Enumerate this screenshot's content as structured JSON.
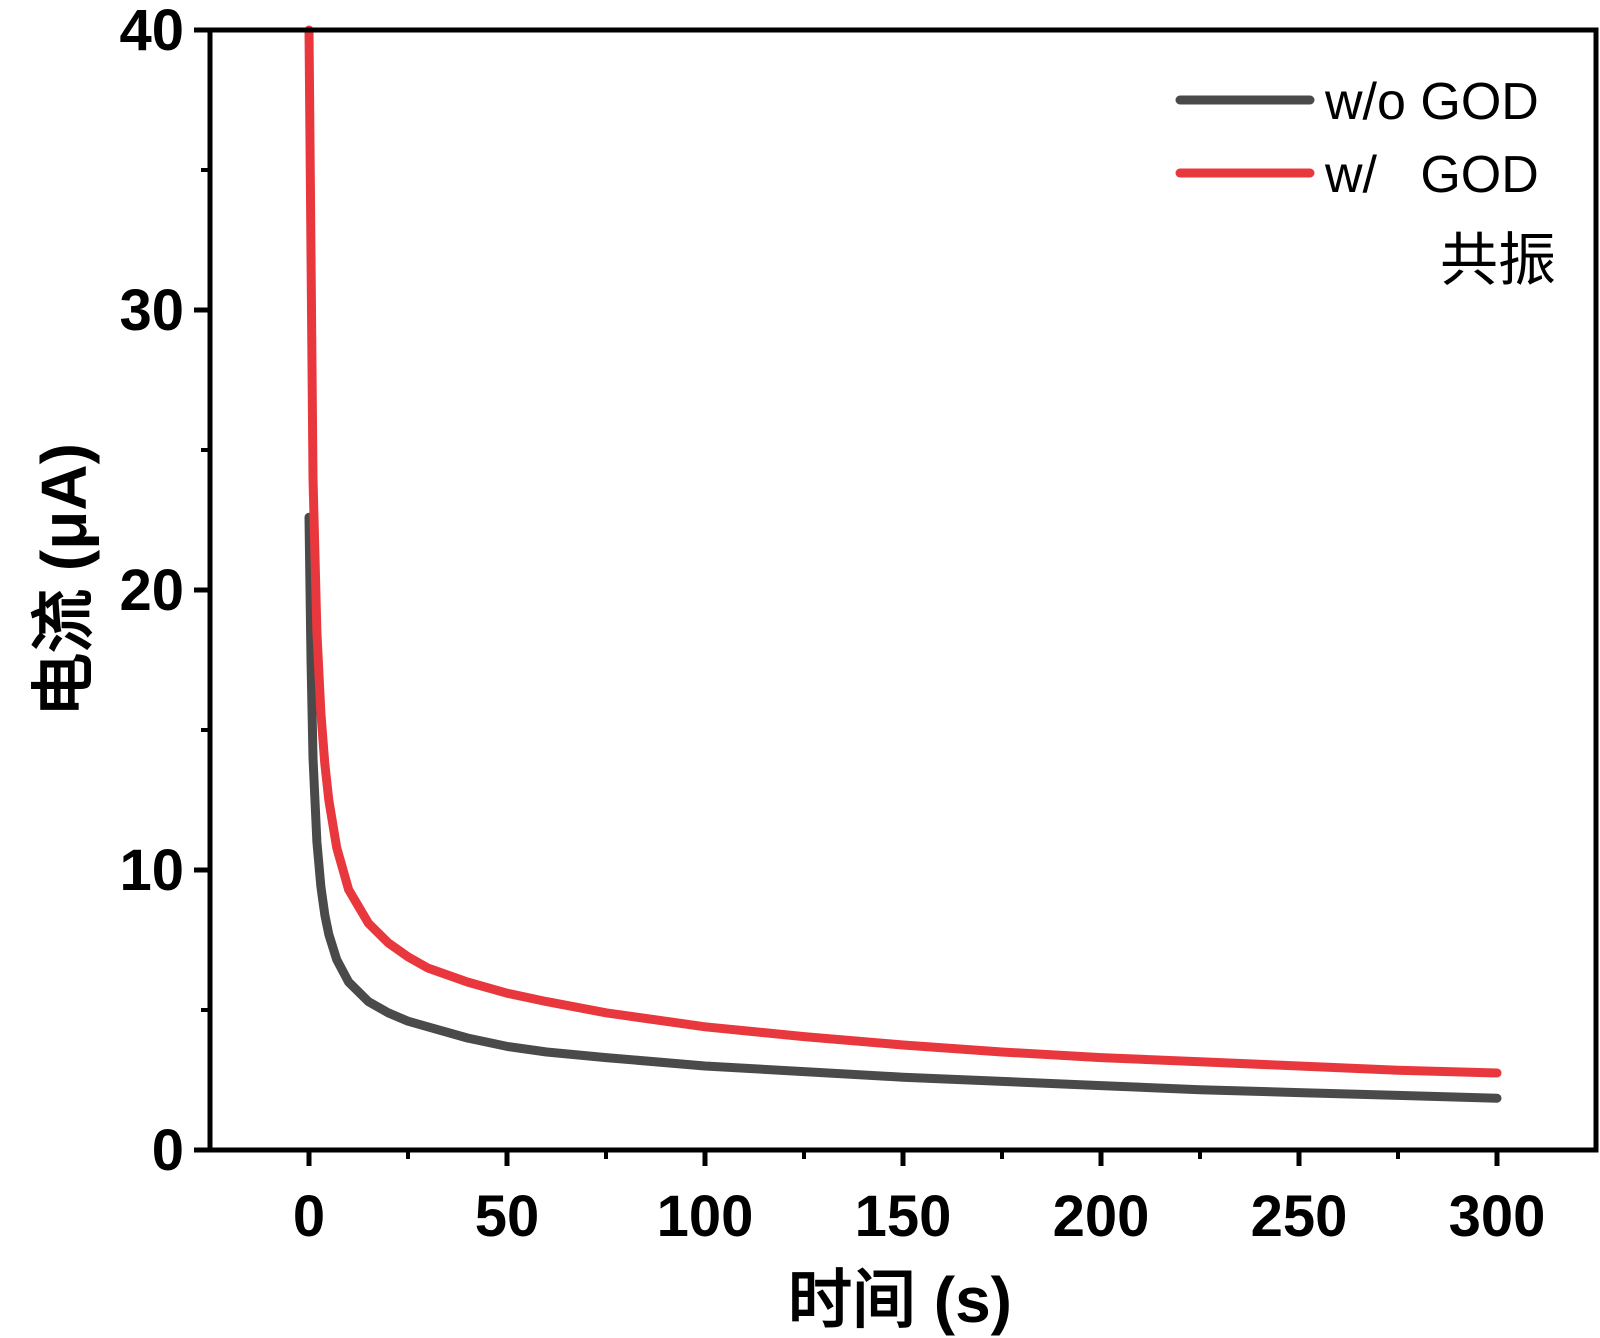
{
  "chart_data": {
    "type": "line",
    "title": "",
    "xlabel": "时间 (s)",
    "ylabel": "电流 (μA)",
    "xlim": [
      -25,
      325
    ],
    "ylim": [
      0,
      40
    ],
    "xticks": [
      0,
      50,
      100,
      150,
      200,
      250,
      300
    ],
    "xtick_labels": [
      "0",
      "50",
      "100",
      "150",
      "200",
      "250",
      "300"
    ],
    "yticks": [
      0,
      10,
      20,
      30,
      40
    ],
    "ytick_labels": [
      "0",
      "10",
      "20",
      "30",
      "40"
    ],
    "annotation": "共振",
    "legend_position": "top-right",
    "series": [
      {
        "name": "w/o GOD",
        "color": "#4a4a4a",
        "x": [
          0,
          0.5,
          1,
          2,
          3,
          4,
          5,
          7,
          10,
          15,
          20,
          25,
          30,
          40,
          50,
          60,
          75,
          100,
          125,
          150,
          175,
          200,
          225,
          250,
          275,
          300
        ],
        "y": [
          22.6,
          17.5,
          14.0,
          11.0,
          9.4,
          8.4,
          7.7,
          6.8,
          6.0,
          5.3,
          4.9,
          4.6,
          4.4,
          4.0,
          3.7,
          3.5,
          3.3,
          3.0,
          2.8,
          2.6,
          2.45,
          2.3,
          2.15,
          2.05,
          1.95,
          1.85
        ]
      },
      {
        "name": "w/   GOD",
        "color": "#e8383d",
        "x": [
          0,
          0.5,
          1,
          2,
          3,
          4,
          5,
          7,
          10,
          15,
          20,
          25,
          30,
          40,
          50,
          60,
          75,
          100,
          125,
          150,
          175,
          200,
          225,
          250,
          275,
          300
        ],
        "y": [
          40,
          32.0,
          24.0,
          18.5,
          15.6,
          13.8,
          12.5,
          10.8,
          9.3,
          8.1,
          7.4,
          6.9,
          6.5,
          6.0,
          5.6,
          5.3,
          4.9,
          4.4,
          4.05,
          3.75,
          3.5,
          3.3,
          3.15,
          3.0,
          2.85,
          2.75
        ]
      }
    ]
  }
}
